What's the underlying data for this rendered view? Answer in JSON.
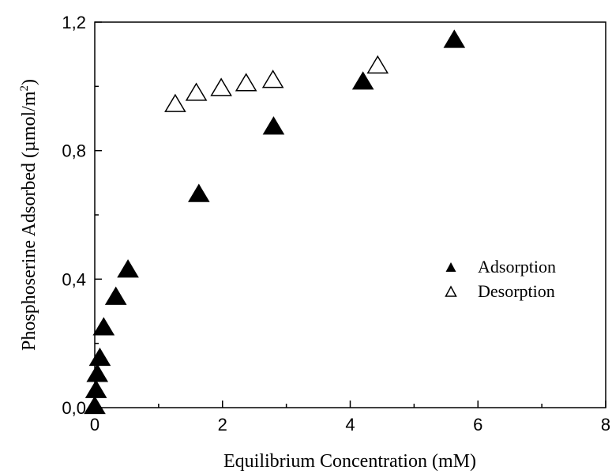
{
  "chart_data": {
    "type": "scatter",
    "xlabel": "Equilibrium Concentration (mM)",
    "ylabel_parts": [
      "Phosphoserine Adsorbed (µmol/m",
      "2",
      ")"
    ],
    "xlim": [
      0,
      8
    ],
    "ylim": [
      0,
      1.2
    ],
    "x_ticks": [
      0,
      2,
      4,
      6,
      8
    ],
    "x_tick_labels": [
      "0",
      "2",
      "4",
      "6",
      "8"
    ],
    "y_ticks": [
      0,
      0.4,
      0.8,
      1.2
    ],
    "y_tick_labels": [
      "0,0",
      "0,4",
      "0,8",
      "1,2"
    ],
    "grid": false,
    "legend_position": "center-right",
    "series": [
      {
        "name": "Adsorption",
        "marker": "filled-triangle",
        "color": "#000000",
        "x": [
          0.0,
          0.02,
          0.04,
          0.08,
          0.14,
          0.33,
          0.52,
          1.63,
          2.8,
          4.2,
          5.63
        ],
        "y": [
          0.005,
          0.055,
          0.105,
          0.155,
          0.25,
          0.345,
          0.43,
          0.665,
          0.875,
          1.015,
          1.145
        ]
      },
      {
        "name": "Desorption",
        "marker": "open-triangle",
        "color": "#000000",
        "x": [
          1.26,
          1.59,
          1.98,
          2.37,
          2.79,
          4.43
        ],
        "y": [
          0.945,
          0.98,
          0.995,
          1.01,
          1.02,
          1.065
        ]
      }
    ]
  }
}
